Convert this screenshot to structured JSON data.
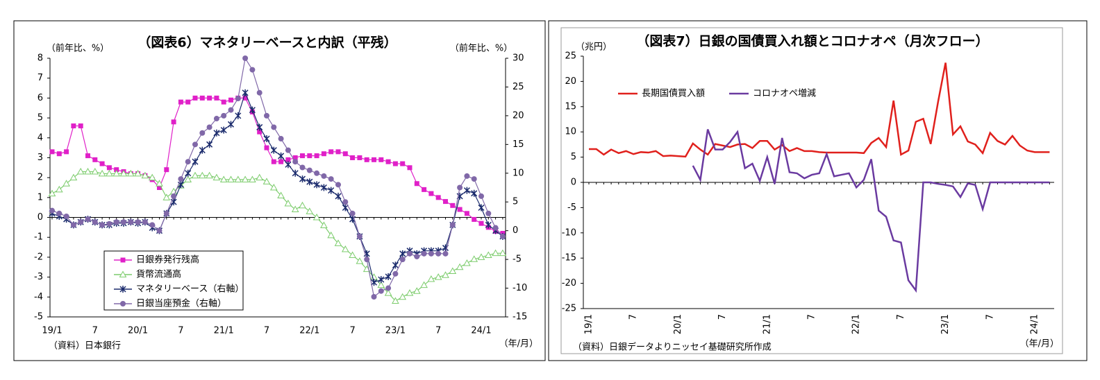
{
  "chart_data": [
    {
      "type": "line",
      "title": "（図表6）マネタリーベースと内訳（平残）",
      "y_label": "（前年比、%）",
      "y2_label": "（前年比、%）",
      "source": "（資料）日本銀行",
      "x_unit": "（年/月）",
      "categories": [
        "19/1",
        null,
        null,
        null,
        null,
        null,
        "7",
        null,
        null,
        null,
        null,
        null,
        "20/1",
        null,
        null,
        null,
        null,
        null,
        "7",
        null,
        null,
        null,
        null,
        null,
        "21/1",
        null,
        null,
        null,
        null,
        null,
        "7",
        null,
        null,
        null,
        null,
        null,
        "22/1",
        null,
        null,
        null,
        null,
        null,
        "7",
        null,
        null,
        null,
        null,
        null,
        "23/1",
        null,
        null,
        null,
        null,
        null,
        "7",
        null,
        null,
        null,
        null,
        null,
        "24/1",
        null,
        null,
        null
      ],
      "series": [
        {
          "name": "日銀券発行残高",
          "color": "#e020c8",
          "marker": "square",
          "axis": "y",
          "values": [
            3.3,
            3.2,
            3.3,
            4.6,
            4.6,
            3.1,
            2.9,
            2.7,
            2.5,
            2.4,
            2.3,
            2.2,
            2.2,
            2.1,
            1.9,
            1.5,
            2.4,
            4.8,
            5.8,
            5.8,
            6.0,
            6.0,
            6.0,
            6.0,
            5.8,
            5.9,
            6.0,
            6.0,
            5.3,
            4.3,
            3.5,
            2.8,
            2.8,
            2.9,
            3.0,
            3.1,
            3.1,
            3.1,
            3.2,
            3.3,
            3.3,
            3.2,
            3.0,
            3.0,
            2.9,
            2.9,
            2.9,
            2.8,
            2.7,
            2.7,
            2.5,
            1.7,
            1.4,
            1.2,
            1.0,
            0.8,
            0.6,
            0.4,
            0.2,
            -0.1,
            -0.3,
            -0.5,
            -0.7,
            -0.8
          ]
        },
        {
          "name": "貨幣流通高",
          "color": "#7ccc6c",
          "marker": "triangle",
          "axis": "y",
          "values": [
            1.2,
            1.4,
            1.7,
            2.0,
            2.3,
            2.3,
            2.3,
            2.2,
            2.2,
            2.2,
            2.2,
            2.2,
            2.2,
            2.1,
            2.0,
            1.7,
            1.0,
            1.3,
            1.6,
            1.9,
            2.1,
            2.1,
            2.1,
            2.0,
            1.9,
            1.9,
            1.9,
            1.9,
            1.9,
            2.0,
            1.8,
            1.5,
            1.1,
            0.7,
            0.4,
            0.6,
            0.3,
            0.0,
            -0.4,
            -0.9,
            -1.3,
            -1.6,
            -1.9,
            -2.2,
            -2.6,
            -3.0,
            -3.4,
            -3.8,
            -4.2,
            -4.0,
            -3.8,
            -3.7,
            -3.4,
            -3.1,
            -3.0,
            -2.9,
            -2.7,
            -2.5,
            -2.3,
            -2.1,
            -2.0,
            -1.9,
            -1.8,
            -1.8
          ]
        },
        {
          "name": "マネタリーベース（右軸）",
          "color": "#1a2a6c",
          "marker": "x",
          "axis": "y2",
          "values": [
            3,
            2.5,
            2,
            1,
            1.5,
            2,
            1.5,
            1,
            1,
            1.3,
            1.3,
            1.5,
            1.3,
            1.5,
            0.5,
            0,
            3,
            5,
            8,
            10,
            12,
            14,
            15,
            17,
            17.5,
            18.5,
            20,
            24,
            21,
            18,
            16,
            14,
            13,
            11.5,
            10,
            9,
            8.5,
            8,
            7.5,
            7,
            6,
            4,
            2,
            -1,
            -4,
            -9,
            -8.5,
            -8,
            -6,
            -4,
            -3.5,
            -4,
            -3.5,
            -3.5,
            -3.5,
            -3,
            1,
            6,
            7,
            6.5,
            4,
            1,
            0,
            -1
          ]
        },
        {
          "name": "日銀当座預金（右軸）",
          "color": "#8068a8",
          "marker": "circle",
          "axis": "y2",
          "values": [
            3.5,
            3,
            2.5,
            1,
            1.5,
            2,
            1.5,
            1,
            1.2,
            1.5,
            1.5,
            1.5,
            1.5,
            1.5,
            1,
            0,
            3,
            6,
            9,
            12,
            15,
            17,
            18,
            19.5,
            20,
            21,
            23,
            30,
            28,
            24,
            20,
            18,
            16,
            14,
            12,
            11,
            10.5,
            10,
            9.5,
            9,
            8,
            5,
            3,
            -1,
            -5,
            -11.5,
            -10.5,
            -10,
            -7.5,
            -5,
            -4,
            -4.5,
            -4,
            -4,
            -4,
            -4,
            1,
            7.5,
            9.5,
            9,
            6,
            3,
            0.5,
            -1
          ]
        }
      ],
      "ylim": [
        -5,
        8
      ],
      "yticks": [
        8,
        7,
        6,
        5,
        4,
        3,
        2,
        1,
        0,
        -1,
        -2,
        -3,
        -4,
        -5
      ],
      "y2lim": [
        -15,
        30
      ],
      "y2ticks": [
        30,
        25,
        20,
        15,
        10,
        5,
        0,
        -5,
        -10,
        -15
      ],
      "legend": "lower left",
      "grid": false
    },
    {
      "type": "line",
      "title": "（図表7）日銀の国債買入れ額とコロナオペ（月次フロー）",
      "y_label": "（兆円）",
      "source": "（資料）日銀データよりニッセイ基礎研究所作成",
      "x_unit": "（年/月）",
      "categories": [
        "19/1",
        null,
        null,
        null,
        null,
        null,
        "7",
        null,
        null,
        null,
        null,
        null,
        "20/1",
        null,
        null,
        null,
        null,
        null,
        "7",
        null,
        null,
        null,
        null,
        null,
        "21/1",
        null,
        null,
        null,
        null,
        null,
        "7",
        null,
        null,
        null,
        null,
        null,
        "22/1",
        null,
        null,
        null,
        null,
        null,
        "7",
        null,
        null,
        null,
        null,
        null,
        "23/1",
        null,
        null,
        null,
        null,
        null,
        "7",
        null,
        null,
        null,
        null,
        null,
        "24/1",
        null,
        null
      ],
      "series": [
        {
          "name": "長期国債買入額",
          "color": "#e0201c",
          "values": [
            6.6,
            6.6,
            5.5,
            6.5,
            5.8,
            6.2,
            5.6,
            6.0,
            5.9,
            6.2,
            5.2,
            5.3,
            5.2,
            5.1,
            7.7,
            6.5,
            5.5,
            7.6,
            7.3,
            7.0,
            7.5,
            7.6,
            6.8,
            8.2,
            8.2,
            6.5,
            7.4,
            6.2,
            6.8,
            6.2,
            6.2,
            6.0,
            5.9,
            5.9,
            5.9,
            5.9,
            5.9,
            5.8,
            7.8,
            8.8,
            7.0,
            16.2,
            5.5,
            6.3,
            12.0,
            12.6,
            7.6,
            16.0,
            23.7,
            9.5,
            11.1,
            8.1,
            7.5,
            5.8,
            9.8,
            8.2,
            7.5,
            9.2,
            7.3,
            6.3,
            6.0,
            6.0,
            6.0
          ]
        },
        {
          "name": "コロナオペ増減",
          "color": "#6a3aa0",
          "values": [
            null,
            null,
            null,
            null,
            null,
            null,
            null,
            null,
            null,
            null,
            null,
            null,
            null,
            null,
            3.3,
            0.5,
            10.5,
            6.5,
            6.5,
            8.0,
            10.0,
            2.8,
            3.7,
            0.3,
            5.0,
            -0.3,
            8.8,
            2.0,
            1.8,
            0.8,
            1.5,
            1.8,
            5.6,
            1.2,
            1.5,
            1.8,
            -1.0,
            0.5,
            4.6,
            -5.6,
            -6.8,
            -11.5,
            -11.9,
            -19.4,
            -21.4,
            0,
            0,
            -0.3,
            -0.5,
            -0.8,
            -2.9,
            -0.2,
            -0.5,
            -5.3,
            0,
            0,
            0,
            0,
            0,
            0,
            0,
            0,
            0
          ]
        }
      ],
      "ylim": [
        -25,
        25
      ],
      "yticks": [
        25,
        20,
        15,
        10,
        5,
        0,
        -5,
        -10,
        -15,
        -20,
        -25
      ],
      "legend": "upper left",
      "grid": false
    }
  ]
}
